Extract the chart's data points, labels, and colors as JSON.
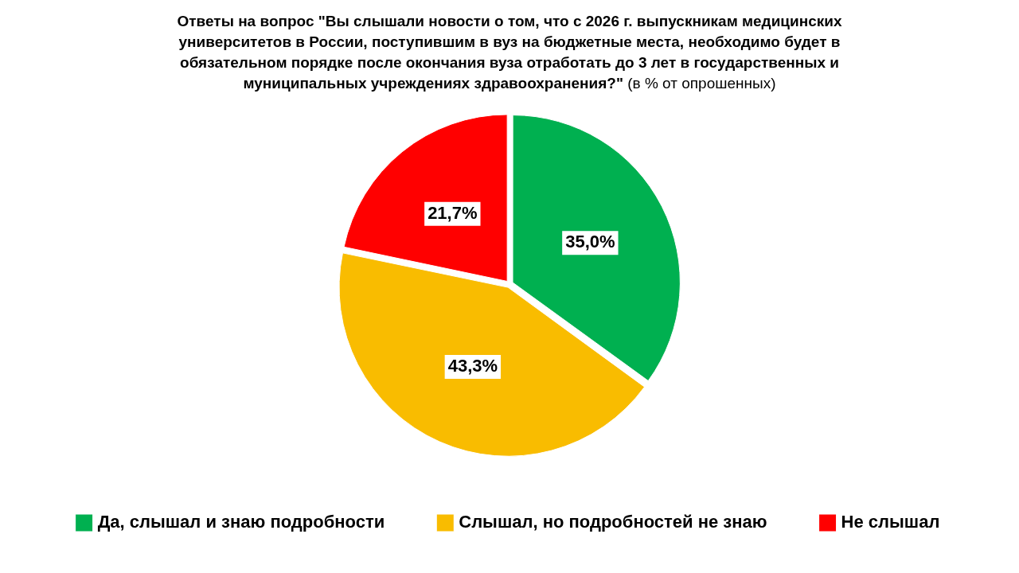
{
  "chart_data": {
    "type": "pie",
    "title": "Ответы на вопрос \"Вы слышали новости о том, что с 2026 г. выпускникам медицинских университетов в России, поступившим в вуз на бюджетные места, необходимо будет в обязательном порядке после окончания вуза отработать до 3 лет в государственных и муниципальных учреждениях здравоохранения?\"",
    "subtitle": "(в % от опрошенных)",
    "categories": [
      "Да, слышал и знаю подробности",
      "Слышал, но подробностей не знаю",
      "Не слышал"
    ],
    "values": [
      35.0,
      43.3,
      21.7
    ],
    "value_labels": [
      "35,0%",
      "43,3%",
      "21,7%"
    ],
    "colors": [
      "#00b050",
      "#f9bc00",
      "#ff0000"
    ],
    "legend": "bottom"
  }
}
